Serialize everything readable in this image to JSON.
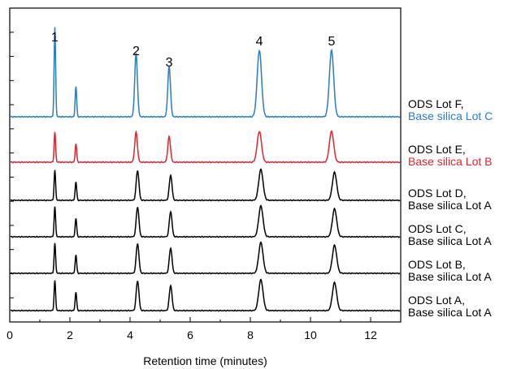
{
  "chart_data": {
    "type": "line",
    "title": "",
    "xlabel": "Retention time (minutes)",
    "ylabel": "",
    "xlim": [
      0,
      13
    ],
    "xticks": [
      0,
      2,
      4,
      6,
      8,
      10,
      12
    ],
    "yticks_count": 12,
    "grid": false,
    "peak_labels": [
      {
        "label": "1",
        "x": 1.5
      },
      {
        "label": "2",
        "x": 4.2
      },
      {
        "label": "3",
        "x": 5.3
      },
      {
        "label": "4",
        "x": 8.3
      },
      {
        "label": "5",
        "x": 10.7
      }
    ],
    "series": [
      {
        "label_line1": "ODS Lot A,",
        "label_line2": "Base silica Lot A",
        "color": "#000000",
        "peaks": [
          {
            "x": 1.5,
            "h": 0.92
          },
          {
            "x": 2.2,
            "h": 0.58
          },
          {
            "x": 4.25,
            "h": 0.92
          },
          {
            "x": 5.35,
            "h": 0.78
          },
          {
            "x": 8.35,
            "h": 0.95
          },
          {
            "x": 10.8,
            "h": 0.86
          }
        ]
      },
      {
        "label_line1": "ODS Lot B,",
        "label_line2": "Base silica Lot A",
        "color": "#000000",
        "peaks": [
          {
            "x": 1.5,
            "h": 0.92
          },
          {
            "x": 2.2,
            "h": 0.58
          },
          {
            "x": 4.25,
            "h": 0.92
          },
          {
            "x": 5.35,
            "h": 0.78
          },
          {
            "x": 8.35,
            "h": 0.95
          },
          {
            "x": 10.8,
            "h": 0.86
          }
        ]
      },
      {
        "label_line1": "ODS Lot C,",
        "label_line2": "Base silica Lot A",
        "color": "#000000",
        "peaks": [
          {
            "x": 1.5,
            "h": 0.92
          },
          {
            "x": 2.2,
            "h": 0.58
          },
          {
            "x": 4.25,
            "h": 0.92
          },
          {
            "x": 5.35,
            "h": 0.78
          },
          {
            "x": 8.35,
            "h": 0.95
          },
          {
            "x": 10.8,
            "h": 0.86
          }
        ]
      },
      {
        "label_line1": "ODS Lot D,",
        "label_line2": "Base silica Lot A",
        "color": "#000000",
        "peaks": [
          {
            "x": 1.5,
            "h": 0.92
          },
          {
            "x": 2.2,
            "h": 0.58
          },
          {
            "x": 4.25,
            "h": 0.92
          },
          {
            "x": 5.35,
            "h": 0.78
          },
          {
            "x": 8.35,
            "h": 0.95
          },
          {
            "x": 10.8,
            "h": 0.86
          }
        ]
      },
      {
        "label_line1": "ODS Lot E,",
        "label_line2": "Base silica Lot B",
        "color": "#e0242e",
        "peaks": [
          {
            "x": 1.5,
            "h": 0.92
          },
          {
            "x": 2.2,
            "h": 0.58
          },
          {
            "x": 4.2,
            "h": 0.92
          },
          {
            "x": 5.3,
            "h": 0.78
          },
          {
            "x": 8.3,
            "h": 0.95
          },
          {
            "x": 10.7,
            "h": 0.95
          }
        ]
      },
      {
        "label_line1": "ODS Lot F,",
        "label_line2": "Base silica Lot C",
        "color": "#2b7cc0",
        "peaks": [
          {
            "x": 1.5,
            "h": 2.75
          },
          {
            "x": 2.2,
            "h": 0.95
          },
          {
            "x": 4.2,
            "h": 1.95
          },
          {
            "x": 5.3,
            "h": 1.55
          },
          {
            "x": 8.3,
            "h": 2.05
          },
          {
            "x": 10.7,
            "h": 2.05
          }
        ]
      }
    ]
  }
}
